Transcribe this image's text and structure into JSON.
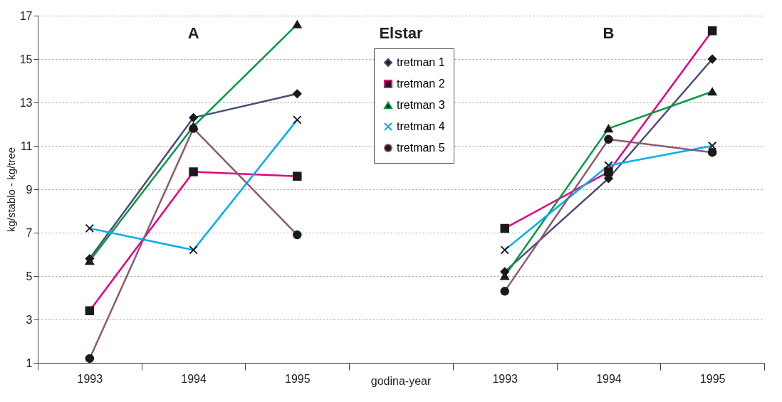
{
  "chart_data": {
    "type": "line",
    "title": "Elstar",
    "xlabel": "godina-year",
    "ylabel": "kg/stablo - kg/tree",
    "categories": [
      "1993",
      "1994",
      "1995",
      null,
      "1993",
      "1994",
      "1995"
    ],
    "annotations": [
      "A",
      "B"
    ],
    "ylim": [
      1,
      17
    ],
    "yticks": [
      1,
      3,
      5,
      7,
      9,
      11,
      13,
      15,
      17
    ],
    "grid": "y",
    "legend": "top",
    "series": [
      {
        "name": "tretman 1",
        "color": "#4b4a7a",
        "marker": "diamond",
        "values": [
          5.8,
          12.3,
          13.4,
          null,
          5.2,
          9.5,
          15.0
        ]
      },
      {
        "name": "tretman 2",
        "color": "#e6007e",
        "marker": "square",
        "values": [
          3.4,
          9.8,
          9.6,
          null,
          7.2,
          9.8,
          16.3
        ]
      },
      {
        "name": "tretman 3",
        "color": "#009a44",
        "marker": "triangle",
        "values": [
          5.7,
          11.9,
          16.6,
          null,
          5.0,
          11.8,
          13.5
        ]
      },
      {
        "name": "tretman 4",
        "color": "#00aeef",
        "marker": "cross",
        "values": [
          7.2,
          6.2,
          12.2,
          null,
          6.2,
          10.1,
          11.0
        ]
      },
      {
        "name": "tretman 5",
        "color": "#8b5a70",
        "marker": "circle",
        "values": [
          1.2,
          11.8,
          6.9,
          null,
          4.3,
          11.3,
          10.7
        ]
      }
    ]
  }
}
